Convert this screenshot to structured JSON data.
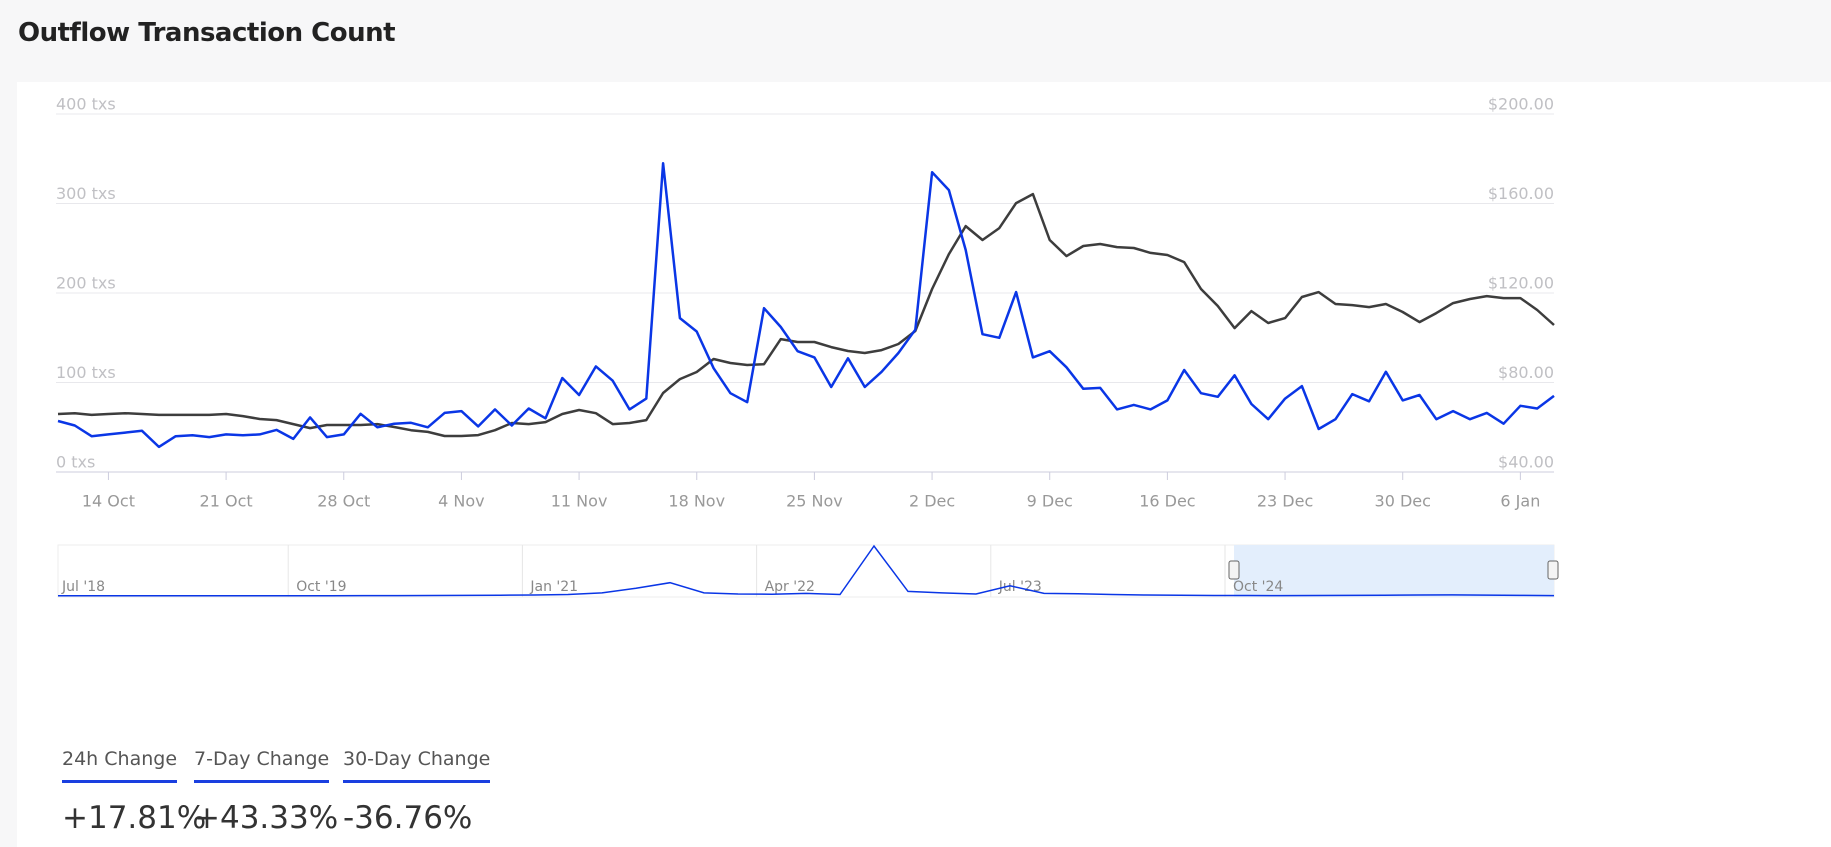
{
  "title": "Outflow Transaction Count",
  "chart_data": {
    "type": "line",
    "categories": [
      null,
      null,
      null,
      "14 Oct",
      null,
      null,
      null,
      null,
      null,
      null,
      "21 Oct",
      null,
      null,
      null,
      null,
      null,
      null,
      "28 Oct",
      null,
      null,
      null,
      null,
      null,
      null,
      "4 Nov",
      null,
      null,
      null,
      null,
      null,
      null,
      "11 Nov",
      null,
      null,
      null,
      null,
      null,
      null,
      "18 Nov",
      null,
      null,
      null,
      null,
      null,
      null,
      "25 Nov",
      null,
      null,
      null,
      null,
      null,
      null,
      "2 Dec",
      null,
      null,
      null,
      null,
      null,
      null,
      "9 Dec",
      null,
      null,
      null,
      null,
      null,
      null,
      "16 Dec",
      null,
      null,
      null,
      null,
      null,
      null,
      "23 Dec",
      null,
      null,
      null,
      null,
      null,
      null,
      "30 Dec",
      null,
      null,
      null,
      null,
      null,
      null,
      "6 Jan",
      null,
      null
    ],
    "series": [
      {
        "color": "#0a36e6",
        "values": [
          57,
          52,
          40,
          42,
          44,
          46,
          28,
          40,
          41,
          39,
          42,
          41,
          42,
          47,
          37,
          61,
          39,
          42,
          65,
          50,
          54,
          55,
          50,
          66,
          68,
          51,
          70,
          52,
          71,
          60,
          105,
          86,
          118,
          102,
          70,
          82,
          345,
          172,
          157,
          116,
          88,
          78,
          183,
          162,
          135,
          128,
          95,
          127,
          95,
          112,
          133,
          159,
          335,
          315,
          248,
          154,
          150,
          201,
          128,
          135,
          117,
          93,
          94,
          70,
          75,
          70,
          80,
          114,
          88,
          84,
          108,
          76,
          59,
          82,
          96,
          48,
          59,
          87,
          79,
          112,
          80,
          86,
          59,
          68,
          59,
          66,
          54,
          74,
          71,
          85
        ]
      },
      {
        "color": "#3d3d3d",
        "axis": "y2",
        "values": [
          65.9,
          66.3,
          65.5,
          65.9,
          66.3,
          65.9,
          65.5,
          65.5,
          65.5,
          65.5,
          65.9,
          65.0,
          63.7,
          63.2,
          61.4,
          59.6,
          61.0,
          61.0,
          61.0,
          61.4,
          60.1,
          58.7,
          57.9,
          56.1,
          56.1,
          56.5,
          58.7,
          61.9,
          61.4,
          62.3,
          65.9,
          67.7,
          66.3,
          61.4,
          61.9,
          63.2,
          75.3,
          81.5,
          84.7,
          90.5,
          88.7,
          87.8,
          88.2,
          99.4,
          98.1,
          98.1,
          95.8,
          94.1,
          93.2,
          94.5,
          97.2,
          103.0,
          121.8,
          137.4,
          149.9,
          143.7,
          149.0,
          160.2,
          164.2,
          143.7,
          136.5,
          141.0,
          141.9,
          140.5,
          140.1,
          137.9,
          137.0,
          133.8,
          121.8,
          114.2,
          104.3,
          111.9,
          106.6,
          108.8,
          118.2,
          120.4,
          115.1,
          114.6,
          113.7,
          115.1,
          111.5,
          107.0,
          111.0,
          115.5,
          117.3,
          118.6,
          117.7,
          117.7,
          112.4,
          105.7
        ]
      }
    ],
    "ylim": [
      0,
      400
    ],
    "yticks": [
      {
        "value": 0,
        "label": "0 txs"
      },
      {
        "value": 100,
        "label": "100 txs"
      },
      {
        "value": 200,
        "label": "200 txs"
      },
      {
        "value": 300,
        "label": "300 txs"
      },
      {
        "value": 400,
        "label": "400 txs"
      }
    ],
    "y2lim": [
      40,
      200
    ],
    "y2ticks": [
      {
        "value": 40,
        "label": "$40.00"
      },
      {
        "value": 80,
        "label": "$80.00"
      },
      {
        "value": 120,
        "label": "$120.00"
      },
      {
        "value": 160,
        "label": "$160.00"
      },
      {
        "value": 200,
        "label": "$200.00"
      }
    ],
    "grid": true
  },
  "navigator": {
    "labels": [
      "Jul '18",
      "Oct '19",
      "Jan '21",
      "Apr '22",
      "Jul '23",
      "Oct '24"
    ],
    "values": [
      5,
      5,
      5,
      6,
      6,
      5,
      6,
      6,
      6,
      7,
      8,
      10,
      12,
      15,
      20,
      30,
      60,
      150,
      260,
      60,
      40,
      35,
      50,
      30,
      980,
      90,
      60,
      40,
      200,
      50,
      45,
      30,
      20,
      15,
      10,
      10,
      8,
      10,
      12,
      14,
      20,
      22,
      18,
      12,
      8
    ]
  },
  "stats": [
    {
      "label": "24h Change",
      "value": "+17.81%"
    },
    {
      "label": "7-Day Change",
      "value": "+43.33%"
    },
    {
      "label": "30-Day Change",
      "value": "-36.76%"
    }
  ]
}
